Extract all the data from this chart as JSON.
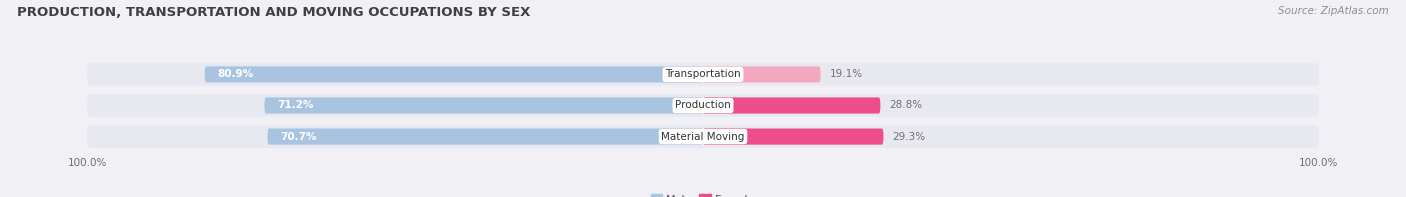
{
  "title": "PRODUCTION, TRANSPORTATION AND MOVING OCCUPATIONS BY SEX",
  "source": "Source: ZipAtlas.com",
  "categories": [
    "Transportation",
    "Production",
    "Material Moving"
  ],
  "male_values": [
    80.9,
    71.2,
    70.7
  ],
  "female_values": [
    19.1,
    28.8,
    29.3
  ],
  "male_color": "#a8c4e0",
  "female_colors": [
    "#f4a8c0",
    "#ee4d8c",
    "#ee4d8c"
  ],
  "bar_bg_color": "#dcdce8",
  "title_fontsize": 9.5,
  "source_fontsize": 7.5,
  "tick_label": "100.0%",
  "background_color": "#f0f0f5",
  "bar_row_bg": "#e8e8f0"
}
